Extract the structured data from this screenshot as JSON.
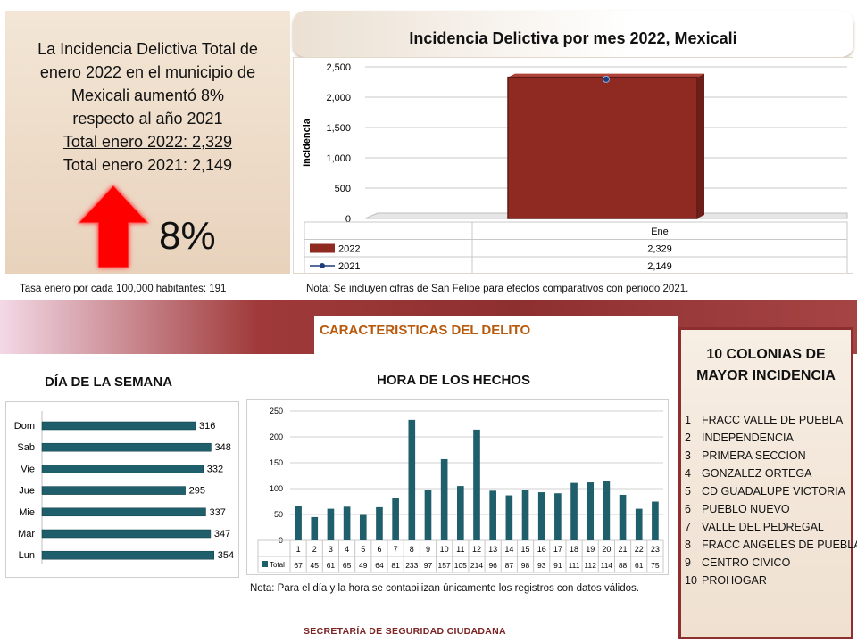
{
  "summary": {
    "line1": "La Incidencia Delictiva Total de",
    "line2": "enero 2022 en el municipio de",
    "line3": "Mexicali aumentó 8%",
    "line4": "respecto al año 2021",
    "line5": "Total enero 2022:   2,329",
    "line6": "Total enero 2021:   2,149",
    "percent": "8%",
    "tasa": "Tasa enero por cada 100,000  habitantes:  191"
  },
  "monthly_note": "Nota: Se incluyen cifras de San Felipe para efectos comparativos con  periodo 2021.",
  "section_title": "CARACTERISTICAS DEL DELITO",
  "dow_title": "DÍA DE LA SEMANA",
  "hour_title": "HORA DE LOS HECHOS",
  "hour_note": "Nota:  Para el día y la hora se contabilizan únicamente los registros con datos válidos.",
  "colonias": {
    "title": "10 COLONIAS DE MAYOR INCIDENCIA",
    "items": [
      {
        "n": "1",
        "name": "FRACC VALLE DE PUEBLA"
      },
      {
        "n": "2",
        "name": "INDEPENDENCIA"
      },
      {
        "n": "3",
        "name": "PRIMERA SECCION"
      },
      {
        "n": "4",
        "name": "GONZALEZ ORTEGA"
      },
      {
        "n": "5",
        "name": "CD GUADALUPE VICTORIA"
      },
      {
        "n": "6",
        "name": "PUEBLO NUEVO"
      },
      {
        "n": "7",
        "name": "VALLE DEL PEDREGAL"
      },
      {
        "n": "8",
        "name": "FRACC ANGELES DE PUEBLA"
      },
      {
        "n": "9",
        "name": "CENTRO CIVICO"
      },
      {
        "n": "10",
        "name": "PROHOGAR"
      }
    ]
  },
  "footer": "SECRETARÍA DE SEGURIDAD CIUDADANA",
  "colors": {
    "bar_red": "#8f2a22",
    "teal": "#1f5f6b",
    "band": "#8e2f2f",
    "line_blue": "#1f3b7a"
  },
  "chart_data": [
    {
      "type": "bar",
      "title": "Incidencia Delictiva por mes 2022, Mexicali",
      "ylabel": "Incidencia",
      "categories": [
        "Ene"
      ],
      "ylim": [
        0,
        2500
      ],
      "yticks": [
        "0",
        "500",
        "1,000",
        "1,500",
        "2,000",
        "2,500"
      ],
      "series": [
        {
          "name": "2022",
          "type": "bar",
          "values": [
            2329
          ],
          "labels": [
            "2,329"
          ]
        },
        {
          "name": "2021",
          "type": "line",
          "values": [
            2149
          ],
          "labels": [
            "2,149"
          ]
        }
      ],
      "grid": true
    },
    {
      "type": "bar",
      "orientation": "horizontal",
      "title": "DÍA DE LA SEMANA",
      "categories": [
        "Dom",
        "Sab",
        "Vie",
        "Jue",
        "Mie",
        "Mar",
        "Lun"
      ],
      "values": [
        316,
        348,
        332,
        295,
        337,
        347,
        354
      ]
    },
    {
      "type": "bar",
      "title": "HORA DE LOS HECHOS",
      "categories": [
        "1",
        "2",
        "3",
        "4",
        "5",
        "6",
        "7",
        "8",
        "9",
        "10",
        "11",
        "12",
        "13",
        "14",
        "15",
        "16",
        "17",
        "18",
        "19",
        "20",
        "21",
        "22",
        "23"
      ],
      "series": [
        {
          "name": "Total",
          "values": [
            67,
            45,
            61,
            65,
            49,
            64,
            81,
            233,
            97,
            157,
            105,
            214,
            96,
            87,
            98,
            93,
            91,
            111,
            112,
            114,
            88,
            61,
            75
          ]
        }
      ],
      "ylim": [
        0,
        250
      ],
      "yticks": [
        "0",
        "50",
        "100",
        "150",
        "200",
        "250"
      ],
      "grid": true
    }
  ]
}
